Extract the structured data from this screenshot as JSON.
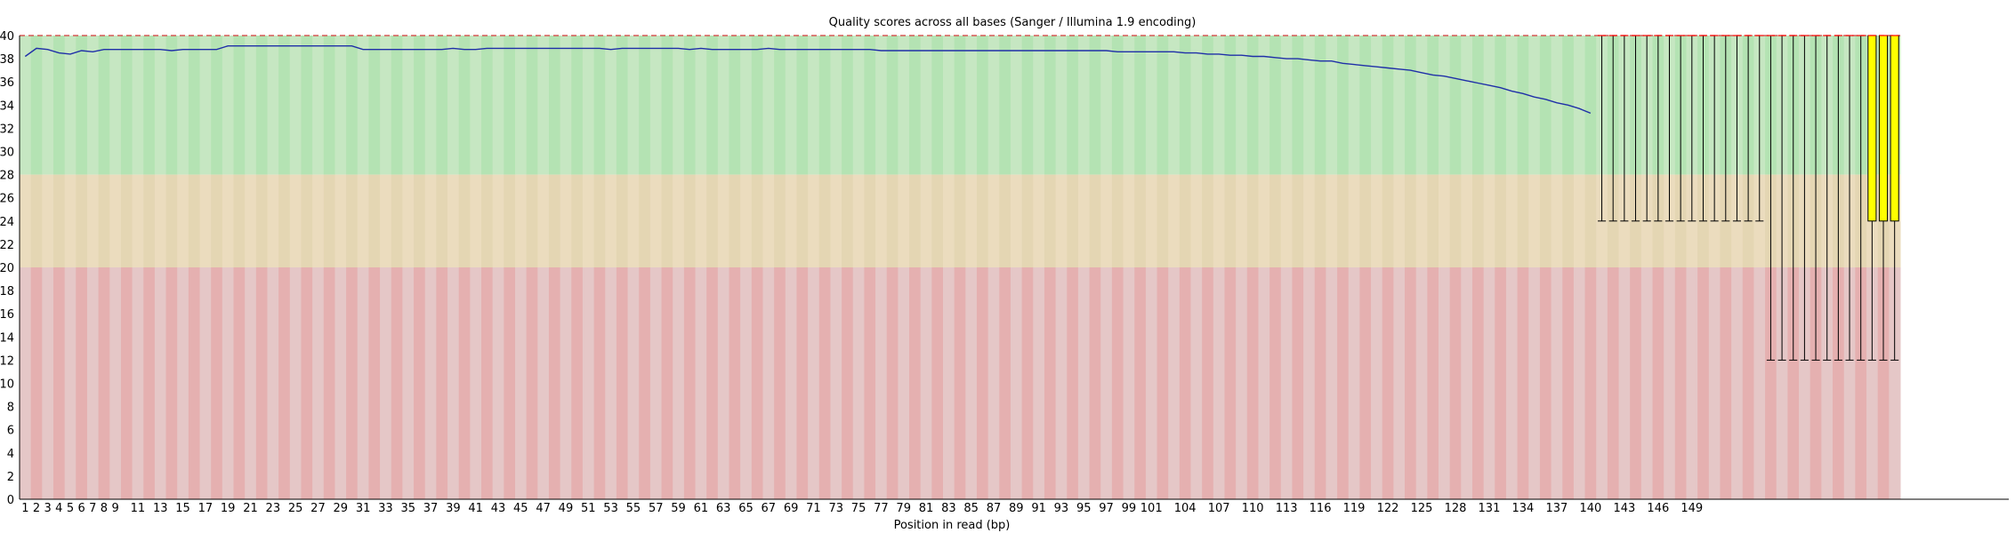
{
  "chart_data": {
    "type": "box",
    "title": "Quality scores across all bases (Sanger / Illumina 1.9 encoding)",
    "xlabel": "Position in read (bp)",
    "ylabel": "",
    "ylim": [
      0,
      40
    ],
    "y_ticks": [
      "0",
      "2",
      "4",
      "6",
      "8",
      "10",
      "12",
      "14",
      "16",
      "18",
      "20",
      "22",
      "24",
      "26",
      "28",
      "30",
      "32",
      "34",
      "36",
      "38",
      "40"
    ],
    "x_tick_labels": [
      "1",
      "2",
      "3",
      "4",
      "5",
      "6",
      "7",
      "8",
      "9",
      "11",
      "13",
      "15",
      "17",
      "19",
      "21",
      "23",
      "25",
      "27",
      "29",
      "31",
      "33",
      "35",
      "37",
      "39",
      "41",
      "43",
      "45",
      "47",
      "49",
      "51",
      "53",
      "55",
      "57",
      "59",
      "61",
      "63",
      "65",
      "67",
      "69",
      "71",
      "73",
      "75",
      "77",
      "79",
      "81",
      "83",
      "85",
      "87",
      "89",
      "91",
      "93",
      "95",
      "97",
      "99",
      "101",
      "104",
      "107",
      "110",
      "113",
      "116",
      "119",
      "122",
      "125",
      "128",
      "131",
      "134",
      "137",
      "140",
      "143",
      "146",
      "149"
    ],
    "quality_bands": [
      {
        "name": "good",
        "from": 28,
        "to": 40,
        "colors": [
          "#c6e7c2",
          "#b4e3b3"
        ]
      },
      {
        "name": "reasonable",
        "from": 20,
        "to": 28,
        "colors": [
          "#ebdcbe",
          "#e4d6b3"
        ]
      },
      {
        "name": "poor",
        "from": 0,
        "to": 20,
        "colors": [
          "#e5c7c7",
          "#e5b0b0"
        ]
      }
    ],
    "colors": {
      "mean_line": "#1f2fa8",
      "box_fill": "#ffff00",
      "median_line": "#ff0000",
      "whisker": "#000000"
    },
    "mean_series": {
      "name": "Mean",
      "values": [
        38.2,
        38.9,
        38.8,
        38.5,
        38.4,
        38.7,
        38.6,
        38.8,
        38.8,
        38.8,
        38.8,
        38.8,
        38.8,
        38.7,
        38.8,
        38.8,
        38.8,
        38.8,
        39.1,
        39.1,
        39.1,
        39.1,
        39.1,
        39.1,
        39.1,
        39.1,
        39.1,
        39.1,
        39.1,
        39.1,
        38.8,
        38.8,
        38.8,
        38.8,
        38.8,
        38.8,
        38.8,
        38.8,
        38.9,
        38.8,
        38.8,
        38.9,
        38.9,
        38.9,
        38.9,
        38.9,
        38.9,
        38.9,
        38.9,
        38.9,
        38.9,
        38.9,
        38.8,
        38.9,
        38.9,
        38.9,
        38.9,
        38.9,
        38.9,
        38.8,
        38.9,
        38.8,
        38.8,
        38.8,
        38.8,
        38.8,
        38.9,
        38.8,
        38.8,
        38.8,
        38.8,
        38.8,
        38.8,
        38.8,
        38.8,
        38.8,
        38.7,
        38.7,
        38.7,
        38.7,
        38.7,
        38.7,
        38.7,
        38.7,
        38.7,
        38.7,
        38.7,
        38.7,
        38.7,
        38.7,
        38.7,
        38.7,
        38.7,
        38.7,
        38.7,
        38.7,
        38.7,
        38.6,
        38.6,
        38.6,
        38.6,
        38.6,
        38.6,
        38.5,
        38.5,
        38.4,
        38.4,
        38.3,
        38.3,
        38.2,
        38.2,
        38.1,
        38.0,
        38.0,
        37.9,
        37.8,
        37.8,
        37.6,
        37.5,
        37.4,
        37.3,
        37.2,
        37.1,
        37.0,
        36.8,
        36.6,
        36.5,
        36.3,
        36.1,
        35.9,
        35.7,
        35.5,
        35.2,
        35.0,
        34.7,
        34.5,
        34.2,
        34.0,
        33.7,
        33.3
      ],
      "x_from": 1
    },
    "box_series": [
      {
        "position": 141,
        "whisker_low": 24,
        "q1": 24,
        "median": 40,
        "q3": 40,
        "whisker_high": 40
      },
      {
        "position": 142,
        "whisker_low": 24,
        "q1": 24,
        "median": 40,
        "q3": 40,
        "whisker_high": 40
      },
      {
        "position": 143,
        "whisker_low": 24,
        "q1": 24,
        "median": 40,
        "q3": 40,
        "whisker_high": 40
      },
      {
        "position": 144,
        "whisker_low": 24,
        "q1": 24,
        "median": 40,
        "q3": 40,
        "whisker_high": 40
      },
      {
        "position": 145,
        "whisker_low": 24,
        "q1": 24,
        "median": 40,
        "q3": 40,
        "whisker_high": 40
      },
      {
        "position": 146,
        "whisker_low": 24,
        "q1": 24,
        "median": 40,
        "q3": 40,
        "whisker_high": 40
      },
      {
        "position": 147,
        "whisker_low": 24,
        "q1": 24,
        "median": 40,
        "q3": 40,
        "whisker_high": 40
      },
      {
        "position": 148,
        "whisker_low": 24,
        "q1": 24,
        "median": 40,
        "q3": 40,
        "whisker_high": 40
      },
      {
        "position": 149,
        "whisker_low": 24,
        "q1": 24,
        "median": 40,
        "q3": 40,
        "whisker_high": 40
      },
      {
        "position": 150,
        "whisker_low": 24,
        "q1": 24,
        "median": 40,
        "q3": 40,
        "whisker_high": 40
      },
      {
        "position": 151,
        "whisker_low": 24,
        "q1": 24,
        "median": 40,
        "q3": 40,
        "whisker_high": 40
      },
      {
        "position": 152,
        "whisker_low": 24,
        "q1": 24,
        "median": 40,
        "q3": 40,
        "whisker_high": 40
      },
      {
        "position": 153,
        "whisker_low": 24,
        "q1": 24,
        "median": 40,
        "q3": 40,
        "whisker_high": 40
      },
      {
        "position": 154,
        "whisker_low": 24,
        "q1": 24,
        "median": 40,
        "q3": 40,
        "whisker_high": 40
      },
      {
        "position": 155,
        "whisker_low": 24,
        "q1": 24,
        "median": 40,
        "q3": 40,
        "whisker_high": 40
      },
      {
        "position": 156,
        "whisker_low": 12,
        "q1": 12,
        "median": 40,
        "q3": 40,
        "whisker_high": 40
      },
      {
        "position": 157,
        "whisker_low": 12,
        "q1": 12,
        "median": 40,
        "q3": 40,
        "whisker_high": 40
      },
      {
        "position": 158,
        "whisker_low": 12,
        "q1": 12,
        "median": 40,
        "q3": 40,
        "whisker_high": 40
      },
      {
        "position": 159,
        "whisker_low": 12,
        "q1": 12,
        "median": 40,
        "q3": 40,
        "whisker_high": 40
      },
      {
        "position": 160,
        "whisker_low": 12,
        "q1": 12,
        "median": 40,
        "q3": 40,
        "whisker_high": 40
      },
      {
        "position": 161,
        "whisker_low": 12,
        "q1": 12,
        "median": 40,
        "q3": 40,
        "whisker_high": 40
      },
      {
        "position": 162,
        "whisker_low": 12,
        "q1": 12,
        "median": 40,
        "q3": 40,
        "whisker_high": 40
      },
      {
        "position": 163,
        "whisker_low": 12,
        "q1": 12,
        "median": 40,
        "q3": 40,
        "whisker_high": 40
      },
      {
        "position": 164,
        "whisker_low": 12,
        "q1": 12,
        "median": 40,
        "q3": 40,
        "whisker_high": 40
      },
      {
        "position": 165,
        "whisker_low": 12,
        "q1": 24,
        "median": 40,
        "q3": 40,
        "whisker_high": 40
      },
      {
        "position": 166,
        "whisker_low": 12,
        "q1": 24,
        "median": 40,
        "q3": 40,
        "whisker_high": 40
      },
      {
        "position": 167,
        "whisker_low": 12,
        "q1": 24,
        "median": 40,
        "q3": 40,
        "whisker_high": 40
      }
    ]
  }
}
